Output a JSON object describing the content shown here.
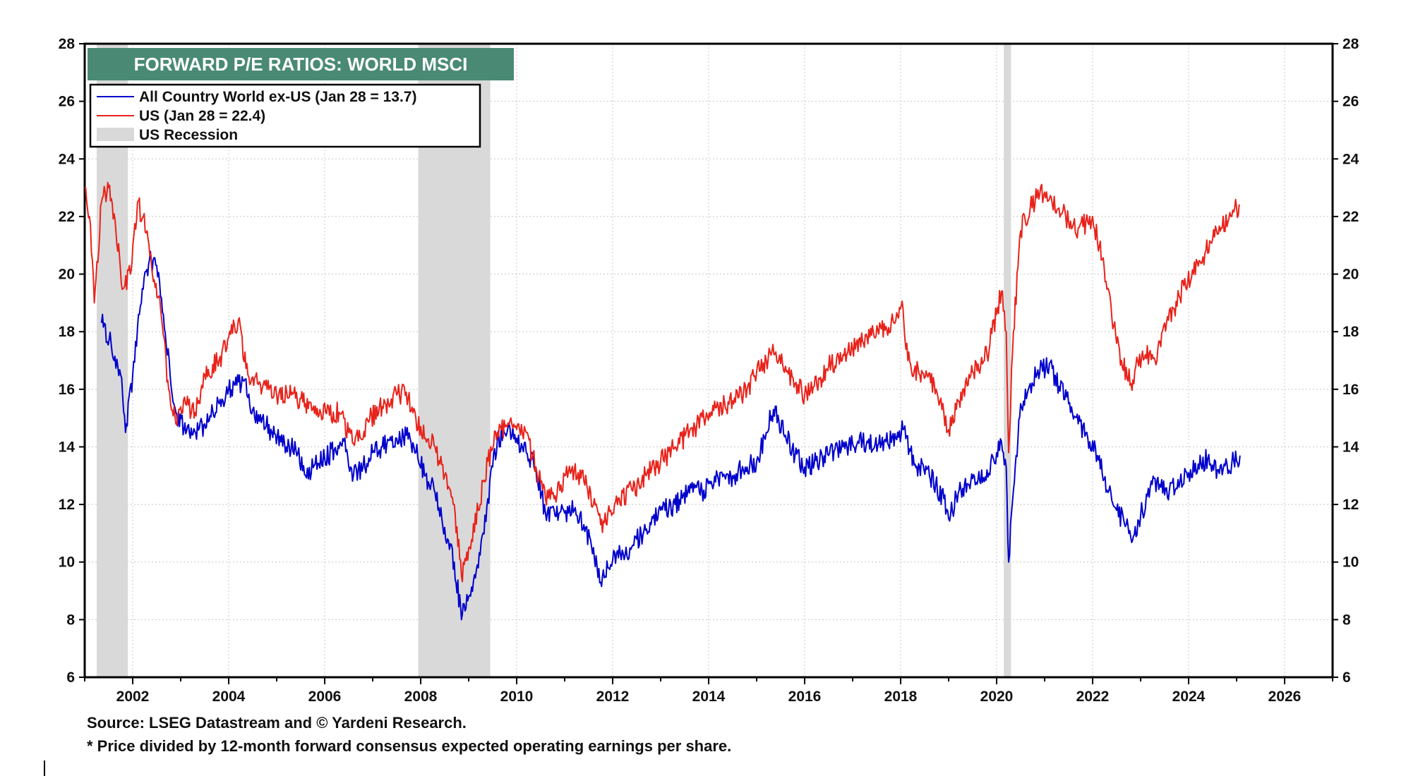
{
  "title": "FORWARD P/E RATIOS: WORLD MSCI",
  "legend": [
    {
      "label": "All Country World ex-US (Jan 28 = 13.7)",
      "color": "#0000cc",
      "kind": "line"
    },
    {
      "label": "US (Jan 28 = 22.4)",
      "color": "#e8231b",
      "kind": "line"
    },
    {
      "label": "US Recession",
      "color": "#d9d9d9",
      "kind": "box"
    }
  ],
  "footnotes": {
    "source": "Source: LSEG Datastream and © Yardeni Research.",
    "note": "* Price divided by 12-month forward consensus expected operating earnings per share."
  },
  "colors": {
    "title_bg": "#4a8a74",
    "title_text": "#ffffff",
    "recession": "#d9d9d9",
    "grid": "#c8c8c8"
  },
  "chart_data": {
    "type": "line",
    "title": "FORWARD P/E RATIOS: WORLD MSCI",
    "xlim": [
      2001.0,
      2027.0
    ],
    "ylim": [
      6,
      28
    ],
    "x_ticks": [
      2002,
      2004,
      2006,
      2008,
      2010,
      2012,
      2014,
      2016,
      2018,
      2020,
      2022,
      2024,
      2026
    ],
    "y_ticks": [
      6,
      8,
      10,
      12,
      14,
      16,
      18,
      20,
      22,
      24,
      26,
      28
    ],
    "grid": true,
    "legend_position": "top-left",
    "recessions": [
      [
        2001.25,
        2001.9
      ],
      [
        2007.95,
        2009.45
      ],
      [
        2020.15,
        2020.3
      ]
    ],
    "series": [
      {
        "name": "All Country World ex-US (Jan 28 = 13.7)",
        "color": "#0000cc",
        "x": [
          2001.35,
          2001.55,
          2001.75,
          2001.85,
          2002.0,
          2002.2,
          2002.35,
          2002.5,
          2002.7,
          2002.9,
          2003.2,
          2003.5,
          2003.8,
          2004.0,
          2004.3,
          2004.5,
          2004.7,
          2004.9,
          2005.2,
          2005.4,
          2005.6,
          2005.8,
          2006.0,
          2006.2,
          2006.4,
          2006.6,
          2006.8,
          2007.0,
          2007.2,
          2007.5,
          2007.7,
          2007.9,
          2008.1,
          2008.3,
          2008.5,
          2008.7,
          2008.85,
          2009.0,
          2009.2,
          2009.4,
          2009.6,
          2009.8,
          2010.0,
          2010.2,
          2010.4,
          2010.6,
          2010.8,
          2011.0,
          2011.2,
          2011.4,
          2011.6,
          2011.75,
          2011.9,
          2012.1,
          2012.3,
          2012.5,
          2012.8,
          2013.0,
          2013.3,
          2013.6,
          2013.9,
          2014.2,
          2014.5,
          2014.8,
          2015.0,
          2015.2,
          2015.35,
          2015.6,
          2015.8,
          2016.0,
          2016.2,
          2016.5,
          2016.8,
          2017.0,
          2017.3,
          2017.6,
          2017.9,
          2018.05,
          2018.3,
          2018.6,
          2018.9,
          2019.0,
          2019.2,
          2019.5,
          2019.8,
          2020.0,
          2020.1,
          2020.2,
          2020.25,
          2020.35,
          2020.5,
          2020.7,
          2020.9,
          2021.1,
          2021.3,
          2021.5,
          2021.7,
          2021.9,
          2022.1,
          2022.3,
          2022.5,
          2022.7,
          2022.85,
          2023.0,
          2023.2,
          2023.4,
          2023.6,
          2023.8,
          2024.0,
          2024.2,
          2024.4,
          2024.6,
          2024.8,
          2025.0,
          2025.07
        ],
        "y": [
          18.3,
          17.6,
          16.5,
          14.5,
          16.5,
          19.5,
          20.5,
          20.3,
          17.5,
          15.2,
          14.3,
          14.8,
          15.5,
          16.0,
          16.3,
          15.3,
          15.0,
          14.5,
          14.0,
          13.9,
          13.0,
          13.4,
          13.6,
          13.9,
          14.2,
          13.0,
          13.3,
          13.8,
          14.0,
          14.3,
          14.4,
          13.8,
          13.0,
          12.4,
          11.2,
          10.0,
          8.0,
          8.8,
          9.8,
          12.2,
          14.3,
          14.5,
          14.3,
          13.8,
          13.3,
          11.7,
          11.6,
          11.7,
          11.8,
          11.3,
          10.5,
          9.3,
          9.8,
          10.4,
          10.2,
          10.8,
          11.3,
          11.8,
          12.0,
          12.4,
          12.5,
          12.9,
          13.0,
          13.3,
          13.5,
          14.5,
          15.3,
          14.4,
          13.7,
          13.3,
          13.4,
          13.7,
          14.0,
          14.1,
          14.2,
          14.1,
          14.3,
          14.6,
          13.4,
          13.0,
          12.2,
          11.5,
          12.4,
          12.9,
          13.2,
          13.8,
          14.2,
          13.3,
          10.0,
          12.5,
          15.5,
          16.2,
          16.6,
          16.9,
          16.1,
          15.5,
          14.8,
          14.3,
          13.7,
          12.5,
          11.8,
          11.3,
          10.9,
          11.6,
          12.6,
          12.7,
          12.5,
          12.6,
          13.1,
          13.4,
          13.6,
          13.2,
          13.4,
          13.5,
          13.7
        ]
      },
      {
        "name": "US (Jan 28 = 22.4)",
        "color": "#e8231b",
        "x": [
          2001.0,
          2001.1,
          2001.2,
          2001.35,
          2001.5,
          2001.65,
          2001.8,
          2001.95,
          2002.1,
          2002.3,
          2002.45,
          2002.6,
          2002.75,
          2002.9,
          2003.1,
          2003.3,
          2003.5,
          2003.8,
          2004.0,
          2004.2,
          2004.4,
          2004.6,
          2004.8,
          2005.0,
          2005.3,
          2005.6,
          2005.9,
          2006.1,
          2006.3,
          2006.5,
          2006.7,
          2006.9,
          2007.2,
          2007.5,
          2007.7,
          2007.9,
          2008.1,
          2008.3,
          2008.5,
          2008.7,
          2008.85,
          2009.0,
          2009.2,
          2009.4,
          2009.6,
          2009.8,
          2010.0,
          2010.2,
          2010.4,
          2010.6,
          2010.8,
          2011.0,
          2011.2,
          2011.4,
          2011.6,
          2011.75,
          2011.9,
          2012.1,
          2012.4,
          2012.7,
          2013.0,
          2013.3,
          2013.6,
          2013.9,
          2014.2,
          2014.5,
          2014.8,
          2015.0,
          2015.2,
          2015.4,
          2015.6,
          2015.8,
          2016.0,
          2016.2,
          2016.5,
          2016.8,
          2017.0,
          2017.3,
          2017.6,
          2017.9,
          2018.05,
          2018.15,
          2018.4,
          2018.7,
          2018.9,
          2019.0,
          2019.2,
          2019.5,
          2019.8,
          2020.0,
          2020.1,
          2020.2,
          2020.25,
          2020.35,
          2020.5,
          2020.7,
          2020.9,
          2021.1,
          2021.3,
          2021.5,
          2021.7,
          2021.9,
          2022.0,
          2022.2,
          2022.4,
          2022.6,
          2022.8,
          2022.9,
          2023.1,
          2023.3,
          2023.5,
          2023.7,
          2023.9,
          2024.1,
          2024.3,
          2024.5,
          2024.7,
          2024.9,
          2025.0,
          2025.07
        ],
        "y": [
          23.0,
          22.0,
          19.0,
          22.5,
          23.0,
          21.5,
          19.5,
          20.0,
          22.5,
          21.5,
          19.8,
          18.5,
          16.0,
          14.8,
          15.5,
          15.2,
          16.5,
          17.0,
          17.8,
          18.4,
          16.5,
          16.2,
          16.0,
          15.8,
          15.8,
          15.5,
          15.3,
          15.1,
          15.2,
          14.5,
          14.2,
          14.9,
          15.4,
          15.8,
          15.9,
          15.0,
          14.3,
          14.0,
          13.0,
          12.0,
          9.5,
          10.5,
          11.8,
          13.5,
          14.5,
          14.7,
          14.6,
          14.5,
          13.3,
          12.2,
          12.3,
          13.0,
          13.2,
          12.8,
          12.0,
          11.3,
          11.7,
          12.0,
          12.5,
          13.0,
          13.5,
          14.0,
          14.5,
          15.0,
          15.4,
          15.6,
          16.0,
          16.6,
          17.0,
          17.3,
          16.8,
          16.2,
          15.8,
          16.1,
          16.8,
          17.2,
          17.4,
          17.8,
          18.1,
          18.4,
          18.8,
          17.0,
          16.5,
          16.2,
          15.2,
          14.6,
          15.6,
          16.6,
          17.2,
          18.6,
          19.4,
          18.0,
          13.8,
          18.0,
          21.5,
          22.3,
          22.8,
          22.6,
          22.3,
          21.8,
          21.6,
          21.8,
          22.0,
          20.5,
          18.5,
          17.0,
          16.2,
          16.8,
          17.2,
          17.0,
          18.3,
          18.8,
          19.6,
          20.0,
          20.6,
          21.2,
          21.6,
          22.0,
          22.3,
          22.4
        ]
      }
    ]
  }
}
